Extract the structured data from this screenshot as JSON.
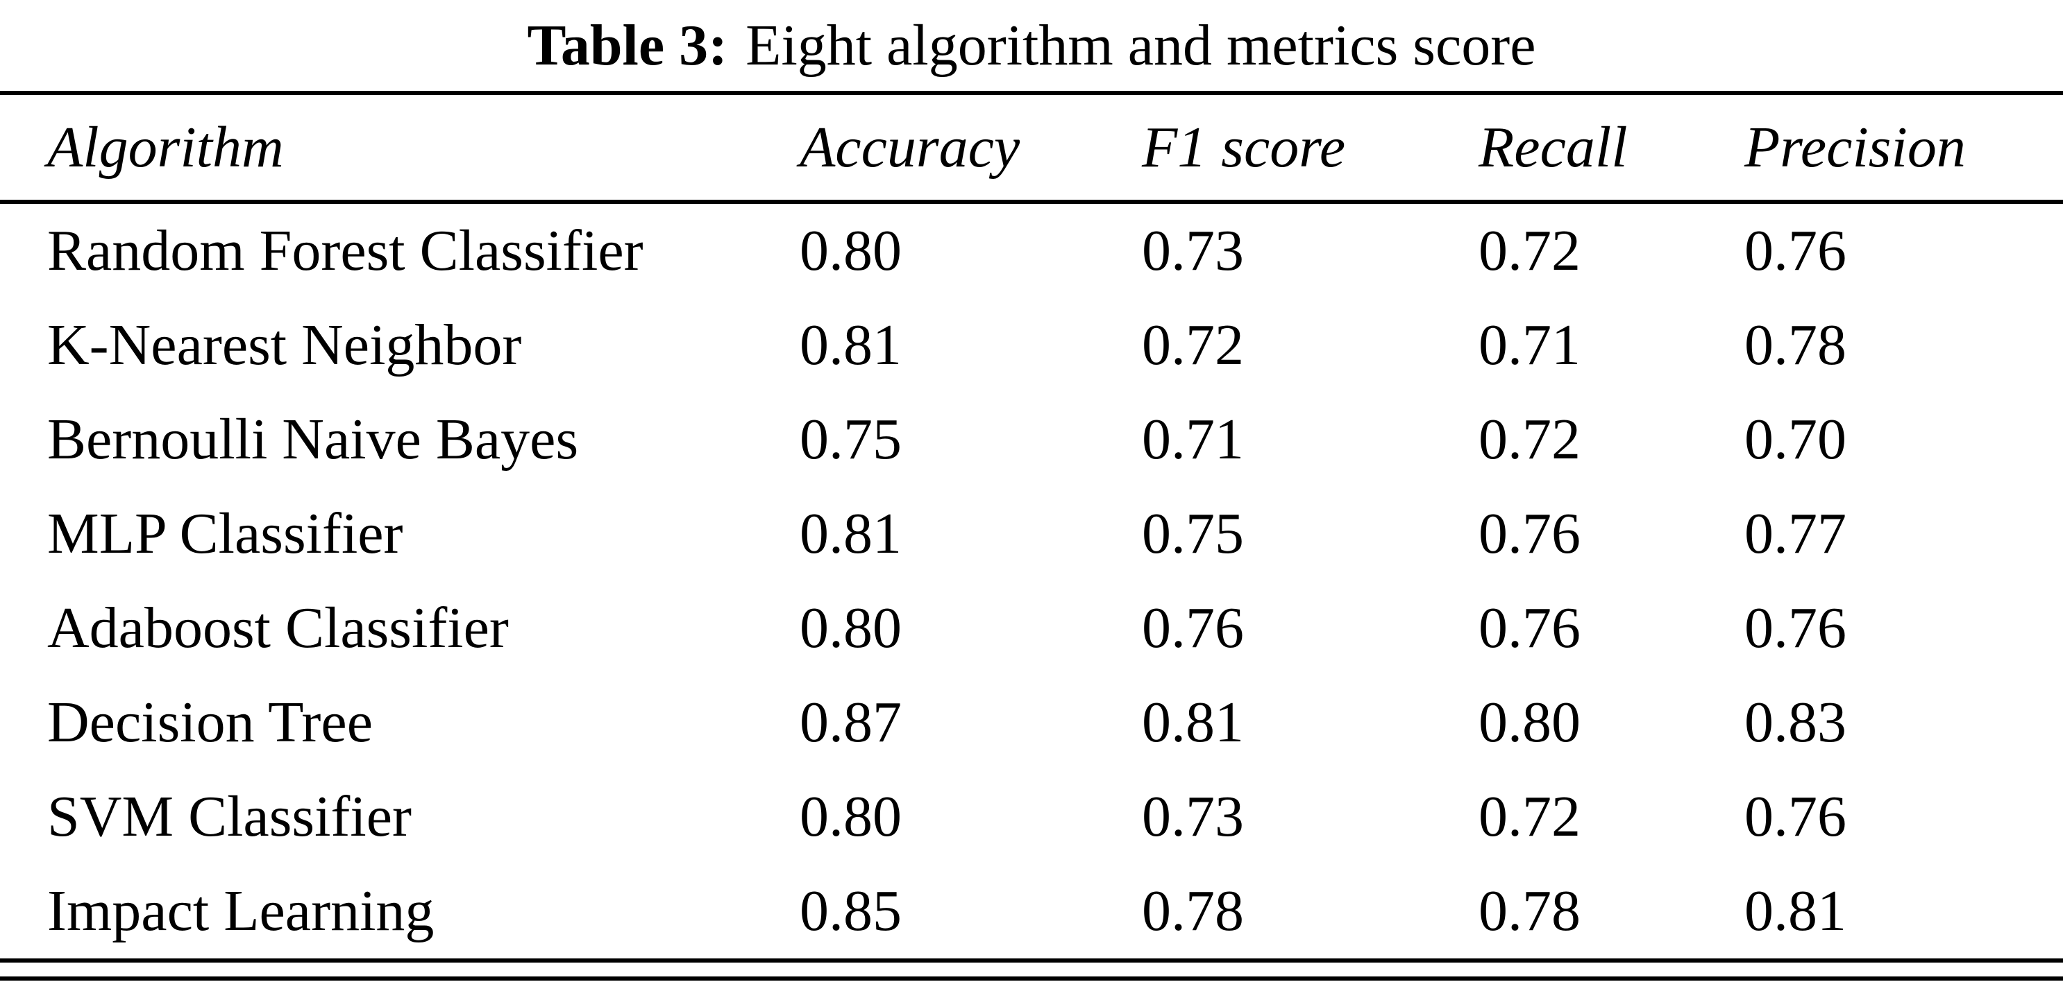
{
  "caption": {
    "label": "Table 3:",
    "text": "Eight algorithm and metrics score"
  },
  "table": {
    "headers": [
      "Algorithm",
      "Accuracy",
      "F1 score",
      "Recall",
      "Precision"
    ],
    "rows": [
      [
        "Random Forest Classifier",
        "0.80",
        "0.73",
        "0.72",
        "0.76"
      ],
      [
        "K-Nearest Neighbor",
        "0.81",
        "0.72",
        "0.71",
        "0.78"
      ],
      [
        "Bernoulli Naive Bayes",
        "0.75",
        "0.71",
        "0.72",
        "0.70"
      ],
      [
        "MLP Classifier",
        "0.81",
        "0.75",
        "0.76",
        "0.77"
      ],
      [
        "Adaboost Classifier",
        "0.80",
        "0.76",
        "0.76",
        "0.76"
      ],
      [
        "Decision Tree",
        "0.87",
        "0.81",
        "0.80",
        "0.83"
      ],
      [
        "SVM Classifier",
        "0.80",
        "0.73",
        "0.72",
        "0.76"
      ],
      [
        "Impact Learning",
        "0.85",
        "0.78",
        "0.78",
        "0.81"
      ]
    ]
  }
}
